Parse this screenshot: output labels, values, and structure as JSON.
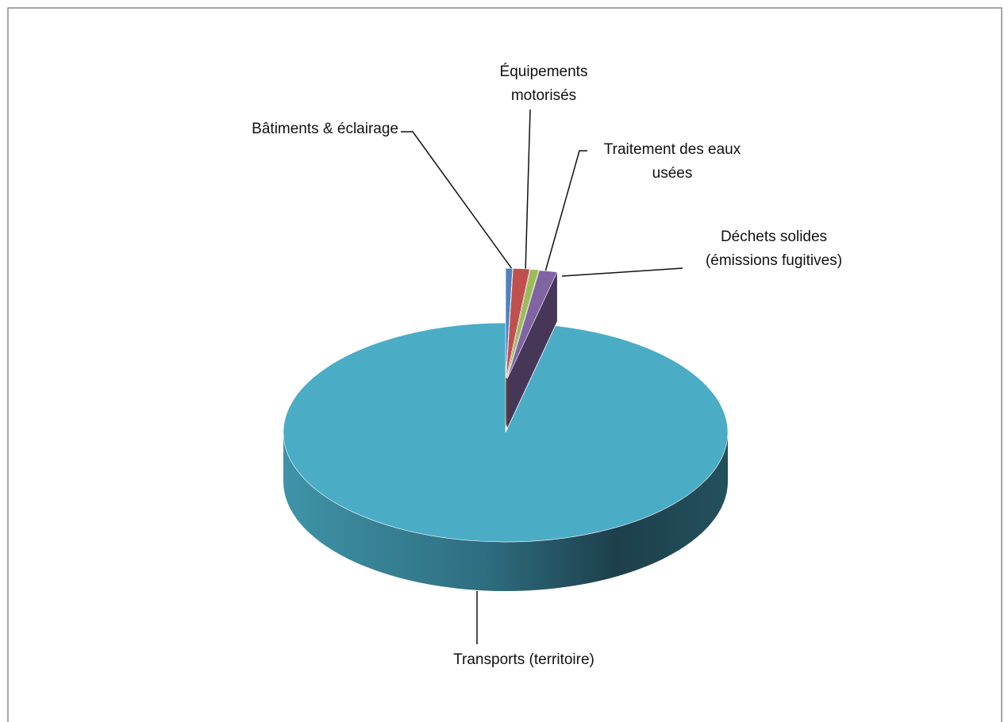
{
  "chart_data": {
    "type": "pie3d",
    "categories": [
      "Bâtiments & éclairage",
      "Équipements motorisés",
      "Traitement des eaux usées",
      "Déchets solides (émissions fugitives)",
      "Transports (territoire)"
    ],
    "values": [
      0.5,
      1.2,
      0.6,
      1.3,
      96.4
    ],
    "colors": [
      "#4f81bd",
      "#c0504d",
      "#9bbb59",
      "#8064a2",
      "#4bacc6"
    ],
    "exploded": [
      true,
      true,
      true,
      true,
      false
    ]
  }
}
